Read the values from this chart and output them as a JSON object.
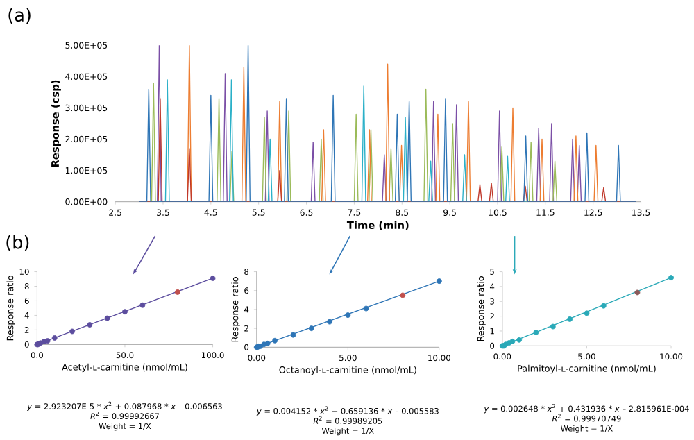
{
  "chart_data": [
    {
      "type": "line",
      "xlabel": "Time (min)",
      "ylabel": "Response (csp)",
      "annotations": [
        "(a)"
      ],
      "xlim": [
        2.5,
        13.5
      ],
      "ylim": [
        0,
        500000
      ],
      "xticks": [
        2.5,
        3.5,
        4.5,
        5.5,
        6.5,
        7.5,
        8.5,
        9.5,
        10.5,
        11.5,
        12.5,
        13.5
      ],
      "yticks": [
        {
          "value": 0,
          "label": "0.00E+00"
        },
        {
          "value": 100000,
          "label": "1.00E+05"
        },
        {
          "value": 200000,
          "label": "2.00E+05"
        },
        {
          "value": 300000,
          "label": "3.00E+05"
        },
        {
          "value": 400000,
          "label": "4.00E+05"
        },
        {
          "value": 500000,
          "label": "5.00E+05"
        }
      ],
      "series": [
        {
          "color": "#7b4fa6",
          "x": [
            3.0,
            3.38,
            3.42,
            3.46,
            4.76,
            4.8,
            4.84,
            5.64,
            5.68,
            5.72,
            6.6,
            6.64,
            6.68,
            8.09,
            8.13,
            8.17,
            9.12,
            9.16,
            9.2,
            9.6,
            9.64,
            9.68,
            10.5,
            10.54,
            10.58,
            11.32,
            11.36,
            11.4,
            11.59,
            11.63,
            11.67,
            12.03,
            12.07,
            12.11,
            12.17,
            12.21,
            12.25,
            13.4
          ],
          "values": [
            0,
            0,
            500000,
            0,
            0,
            410000,
            0,
            0,
            290000,
            0,
            0,
            190000,
            0,
            0,
            150000,
            0,
            0,
            320000,
            0,
            0,
            310000,
            0,
            0,
            290000,
            0,
            0,
            235000,
            0,
            0,
            250000,
            0,
            0,
            200000,
            0,
            0,
            180000,
            0,
            0
          ]
        },
        {
          "color": "#9bbb59",
          "x": [
            3.0,
            3.26,
            3.3,
            3.34,
            4.63,
            4.67,
            4.71,
            4.9,
            4.94,
            4.98,
            5.58,
            5.62,
            5.66,
            6.09,
            6.13,
            6.17,
            6.77,
            6.81,
            6.85,
            7.5,
            7.54,
            7.58,
            7.81,
            7.85,
            7.89,
            8.23,
            8.27,
            8.31,
            8.96,
            9.0,
            9.04,
            9.52,
            9.56,
            9.6,
            10.55,
            10.59,
            10.63,
            11.16,
            11.2,
            11.24,
            11.66,
            11.7,
            11.74,
            13.4
          ],
          "values": [
            0,
            0,
            380000,
            0,
            0,
            330000,
            0,
            0,
            160000,
            0,
            0,
            270000,
            0,
            0,
            290000,
            0,
            0,
            200000,
            0,
            0,
            280000,
            0,
            0,
            230000,
            0,
            0,
            170000,
            0,
            0,
            360000,
            0,
            0,
            250000,
            0,
            0,
            175000,
            0,
            0,
            190000,
            0,
            0,
            130000,
            0,
            0
          ]
        },
        {
          "color": "#ed7d31",
          "x": [
            3.0,
            4.01,
            4.05,
            4.09,
            5.15,
            5.19,
            5.23,
            5.9,
            5.94,
            5.98,
            6.82,
            6.86,
            6.9,
            7.78,
            7.82,
            7.86,
            8.16,
            8.2,
            8.24,
            8.45,
            8.49,
            8.53,
            9.21,
            9.25,
            9.29,
            9.85,
            9.89,
            9.93,
            10.78,
            10.82,
            10.86,
            11.39,
            11.43,
            11.47,
            12.1,
            12.14,
            12.18,
            12.52,
            12.56,
            12.6,
            13.4
          ],
          "values": [
            0,
            0,
            500000,
            0,
            0,
            430000,
            0,
            0,
            320000,
            0,
            0,
            230000,
            0,
            0,
            230000,
            0,
            0,
            440000,
            0,
            0,
            180000,
            0,
            0,
            280000,
            0,
            0,
            320000,
            0,
            0,
            300000,
            0,
            0,
            200000,
            0,
            0,
            210000,
            0,
            0,
            180000,
            0,
            0
          ]
        },
        {
          "color": "#2ab0c8",
          "x": [
            3.0,
            3.55,
            3.59,
            3.63,
            4.89,
            4.93,
            4.97,
            5.7,
            5.74,
            5.78,
            7.66,
            7.7,
            7.74,
            8.53,
            8.57,
            8.61,
            9.06,
            9.1,
            9.14,
            9.77,
            9.81,
            9.85,
            10.67,
            10.71,
            10.75,
            13.4
          ],
          "values": [
            0,
            0,
            390000,
            0,
            0,
            390000,
            0,
            0,
            200000,
            0,
            0,
            370000,
            0,
            0,
            270000,
            0,
            0,
            130000,
            0,
            0,
            150000,
            0,
            0,
            145000,
            0,
            0
          ]
        },
        {
          "color": "#c0392b",
          "x": [
            3.0,
            3.4,
            3.44,
            3.48,
            4.01,
            4.05,
            4.09,
            5.9,
            5.94,
            5.98,
            10.09,
            10.13,
            10.17,
            10.33,
            10.37,
            10.41,
            11.04,
            11.08,
            11.12,
            12.68,
            12.72,
            12.76,
            13.4
          ],
          "values": [
            0,
            0,
            330000,
            0,
            0,
            170000,
            0,
            0,
            100000,
            0,
            0,
            55000,
            0,
            0,
            60000,
            0,
            0,
            50000,
            0,
            0,
            45000,
            0,
            0
          ]
        },
        {
          "color": "#2e75b6",
          "x": [
            3.0,
            3.16,
            3.2,
            3.24,
            4.46,
            4.5,
            4.54,
            5.24,
            5.28,
            5.32,
            6.04,
            6.08,
            6.12,
            7.02,
            7.06,
            7.1,
            8.36,
            8.4,
            8.44,
            8.61,
            8.65,
            8.69,
            9.37,
            9.41,
            9.45,
            11.05,
            11.09,
            11.13,
            12.33,
            12.37,
            12.41,
            12.99,
            13.03,
            13.07,
            13.4
          ],
          "values": [
            0,
            0,
            360000,
            0,
            0,
            340000,
            0,
            0,
            500000,
            0,
            0,
            330000,
            0,
            0,
            340000,
            0,
            0,
            280000,
            0,
            0,
            320000,
            0,
            0,
            330000,
            0,
            0,
            210000,
            0,
            0,
            220000,
            0,
            0,
            180000,
            0,
            0
          ]
        }
      ]
    },
    {
      "type": "scatter",
      "xlabel": "Acetyl-ʟ-carnitine (nmol/mL)",
      "ylabel": "Response ratio",
      "annotations": [
        "(b)",
        "*y* = 2.923207E-5 * *x*$^{2}$ + 0.087968 * *x* – 0.006563",
        "*R*$^{2}$ = 0.99992667",
        "Weight = 1/X"
      ],
      "xlim": [
        0,
        100
      ],
      "ylim": [
        0,
        10
      ],
      "xticks": [
        {
          "value": 0,
          "label": "0.0"
        },
        {
          "value": 50,
          "label": "50.0"
        },
        {
          "value": 100,
          "label": "100.0"
        }
      ],
      "yticks": [
        0,
        2,
        4,
        6,
        8,
        10
      ],
      "series": [
        {
          "type": "line",
          "color": "#5c4d9e",
          "x": [
            0,
            100
          ],
          "values": [
            0,
            9.1
          ]
        },
        {
          "color": "#5c4d9e",
          "x": [
            0,
            0.5,
            1,
            2,
            4,
            6,
            10,
            20,
            30,
            40,
            50,
            60,
            100
          ],
          "values": [
            0,
            0,
            0.1,
            0.2,
            0.4,
            0.5,
            0.9,
            1.8,
            2.7,
            3.6,
            4.5,
            5.4,
            9.1
          ]
        },
        {
          "color": "#c0504d",
          "x": [
            80
          ],
          "values": [
            7.2
          ]
        }
      ]
    },
    {
      "type": "scatter",
      "xlabel": "Octanoyl-ʟ-carnitine (nmol/mL)",
      "ylabel": "Response ratio",
      "annotations": [
        "*y* = 0.004152 * *x*$^{2}$ + 0.659136 * *x* – 0.005583",
        "*R*$^{2}$ = 0.99989205",
        "Weight = 1/X"
      ],
      "xlim": [
        0,
        10
      ],
      "ylim": [
        0,
        8
      ],
      "xticks": [
        {
          "value": 0,
          "label": "0.00"
        },
        {
          "value": 5,
          "label": "5.00"
        },
        {
          "value": 10,
          "label": "10.00"
        }
      ],
      "yticks": [
        0,
        2,
        4,
        6,
        8
      ],
      "series": [
        {
          "type": "line",
          "color": "#2e75b6",
          "x": [
            0,
            10
          ],
          "values": [
            0,
            7.0
          ]
        },
        {
          "color": "#2e75b6",
          "x": [
            0,
            0.05,
            0.1,
            0.2,
            0.4,
            0.6,
            1,
            2,
            3,
            4,
            5,
            6,
            10
          ],
          "values": [
            0,
            0,
            0.1,
            0.1,
            0.3,
            0.4,
            0.7,
            1.3,
            2.0,
            2.7,
            3.4,
            4.1,
            7.0
          ]
        },
        {
          "color": "#c0504d",
          "x": [
            8
          ],
          "values": [
            5.5
          ]
        }
      ]
    },
    {
      "type": "scatter",
      "xlabel": "Palmitoyl-ʟ-carnitine (nmol/mL)",
      "ylabel": "Response ratio",
      "annotations": [
        "*y* = 0.002648 * *x*$^{2}$ + 0.431936 * *x* – 2.815961E-004",
        "*R*$^{2}$ = 0.99970749",
        "Weight = 1/X"
      ],
      "xlim": [
        0,
        10
      ],
      "ylim": [
        0,
        5
      ],
      "xticks": [
        {
          "value": 0,
          "label": "0.00"
        },
        {
          "value": 5,
          "label": "5.00"
        },
        {
          "value": 10,
          "label": "10.00"
        }
      ],
      "yticks": [
        0,
        1,
        2,
        3,
        4,
        5
      ],
      "series": [
        {
          "type": "line",
          "color": "#2aa9b8",
          "x": [
            0,
            10
          ],
          "values": [
            0,
            4.6
          ]
        },
        {
          "color": "#2aa9b8",
          "x": [
            0,
            0.05,
            0.1,
            0.2,
            0.4,
            0.6,
            1,
            2,
            3,
            4,
            5,
            6,
            10
          ],
          "values": [
            0,
            0,
            0,
            0.1,
            0.2,
            0.3,
            0.4,
            0.9,
            1.3,
            1.8,
            2.2,
            2.7,
            4.6
          ]
        },
        {
          "color": "#8b5a5a",
          "x": [
            8
          ],
          "values": [
            3.6
          ]
        }
      ]
    }
  ]
}
